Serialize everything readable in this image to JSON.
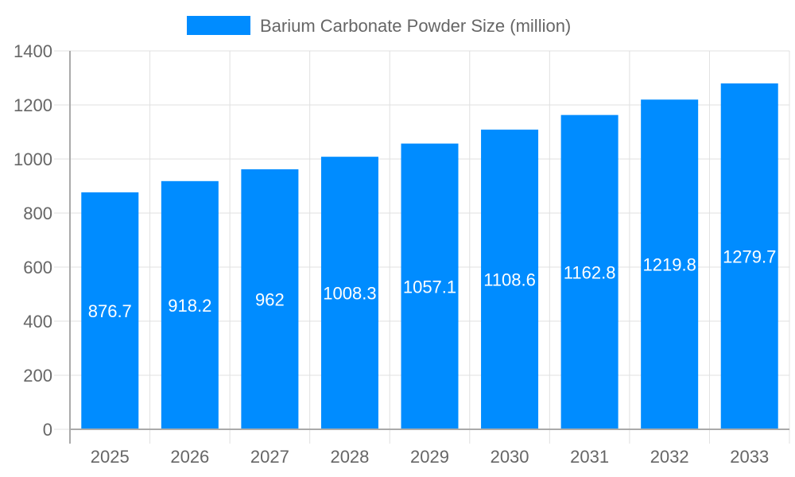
{
  "chart_data": {
    "type": "bar",
    "categories": [
      "2025",
      "2026",
      "2027",
      "2028",
      "2029",
      "2030",
      "2031",
      "2032",
      "2033"
    ],
    "series": [
      {
        "name": "Barium Carbonate Powder Size (million)",
        "values": [
          876.7,
          918.2,
          962,
          1008.3,
          1057.1,
          1108.6,
          1162.8,
          1219.8,
          1279.7
        ],
        "color": "#008CFF"
      }
    ],
    "data_labels": [
      "876.7",
      "918.2",
      "962",
      "1008.3",
      "1057.1",
      "1108.6",
      "1162.8",
      "1219.8",
      "1279.7"
    ],
    "ylim": [
      0,
      1400
    ],
    "yticks": [
      "0",
      "200",
      "400",
      "600",
      "800",
      "1000",
      "1200",
      "1400"
    ],
    "title": "",
    "xlabel": "",
    "ylabel": "",
    "grid": true,
    "legend_position": "top"
  }
}
